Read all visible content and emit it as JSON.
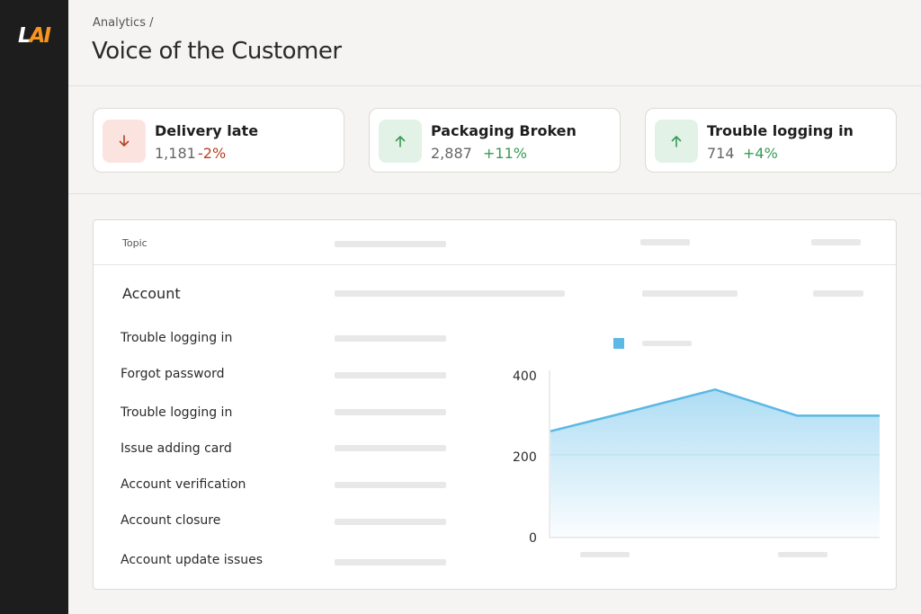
{
  "logo": {
    "l": "L",
    "ai": "AI"
  },
  "header": {
    "breadcrumb": "Analytics /",
    "title": "Voice of the Customer"
  },
  "kpis": [
    {
      "label": "Delivery late",
      "count": "1,181",
      "delta": "-2%",
      "direction": "down",
      "icon": "arrow-down-icon"
    },
    {
      "label": "Packaging Broken",
      "count": "2,887",
      "delta": "+11%",
      "direction": "up",
      "icon": "arrow-up-icon"
    },
    {
      "label": "Trouble logging in",
      "count": "714",
      "delta": "+4%",
      "direction": "up",
      "icon": "arrow-up-icon"
    }
  ],
  "table": {
    "topic_header": "Topic",
    "group": "Account",
    "rows": [
      "Trouble logging in",
      "Forgot password",
      "Trouble logging in",
      "Issue adding card",
      "Account verification",
      "Account closure",
      "Account update issues"
    ]
  },
  "colors": {
    "accent_orange": "#f7941d",
    "sidebar": "#1d1d1d",
    "negative": "#b5411f",
    "positive": "#3a9a55",
    "series": "#5cb8e4"
  },
  "chart_data": {
    "type": "area",
    "y_ticks": [
      "400",
      "200",
      "0"
    ],
    "ylim": [
      0,
      400
    ],
    "series": [
      {
        "values": [
          260,
          310,
          362,
          298,
          298
        ]
      }
    ],
    "grid": "horizontal line at 200",
    "legend": "top, single swatch"
  }
}
